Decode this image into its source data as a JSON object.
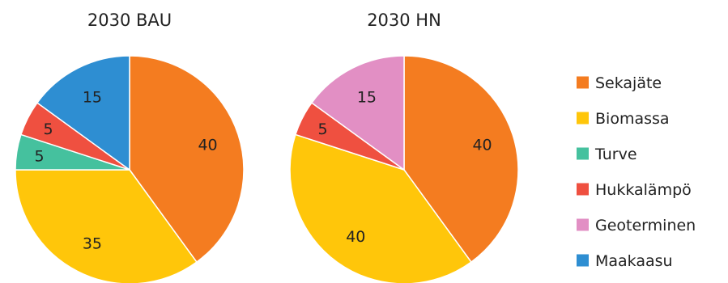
{
  "chart_data": [
    {
      "type": "pie",
      "title": "2030 BAU",
      "slices": [
        {
          "name": "Sekajäte",
          "value": 40,
          "label": "40",
          "color": "#F47C20"
        },
        {
          "name": "Biomassa",
          "value": 35,
          "label": "35",
          "color": "#FFC60A"
        },
        {
          "name": "Turve",
          "value": 5,
          "label": "5",
          "color": "#45C19E"
        },
        {
          "name": "Hukkalämpö",
          "value": 5,
          "label": "5",
          "color": "#EF5040"
        },
        {
          "name": "Maakaasu",
          "value": 15,
          "label": "15",
          "color": "#2E8ED2"
        }
      ]
    },
    {
      "type": "pie",
      "title": "2030 HN",
      "slices": [
        {
          "name": "Sekajäte",
          "value": 40,
          "label": "40",
          "color": "#F47C20"
        },
        {
          "name": "Biomassa",
          "value": 40,
          "label": "40",
          "color": "#FFC60A"
        },
        {
          "name": "Hukkalämpö",
          "value": 5,
          "label": "5",
          "color": "#EF5040"
        },
        {
          "name": "Geoterminen",
          "value": 15,
          "label": "15",
          "color": "#E28FC4"
        }
      ]
    }
  ],
  "legend": {
    "placement": "right",
    "items": [
      {
        "label": "Sekajäte",
        "color": "#F47C20"
      },
      {
        "label": "Biomassa",
        "color": "#FFC60A"
      },
      {
        "label": "Turve",
        "color": "#45C19E"
      },
      {
        "label": "Hukkalämpö",
        "color": "#EF5040"
      },
      {
        "label": "Geoterminen",
        "color": "#E28FC4"
      },
      {
        "label": "Maakaasu",
        "color": "#2E8ED2"
      }
    ]
  }
}
